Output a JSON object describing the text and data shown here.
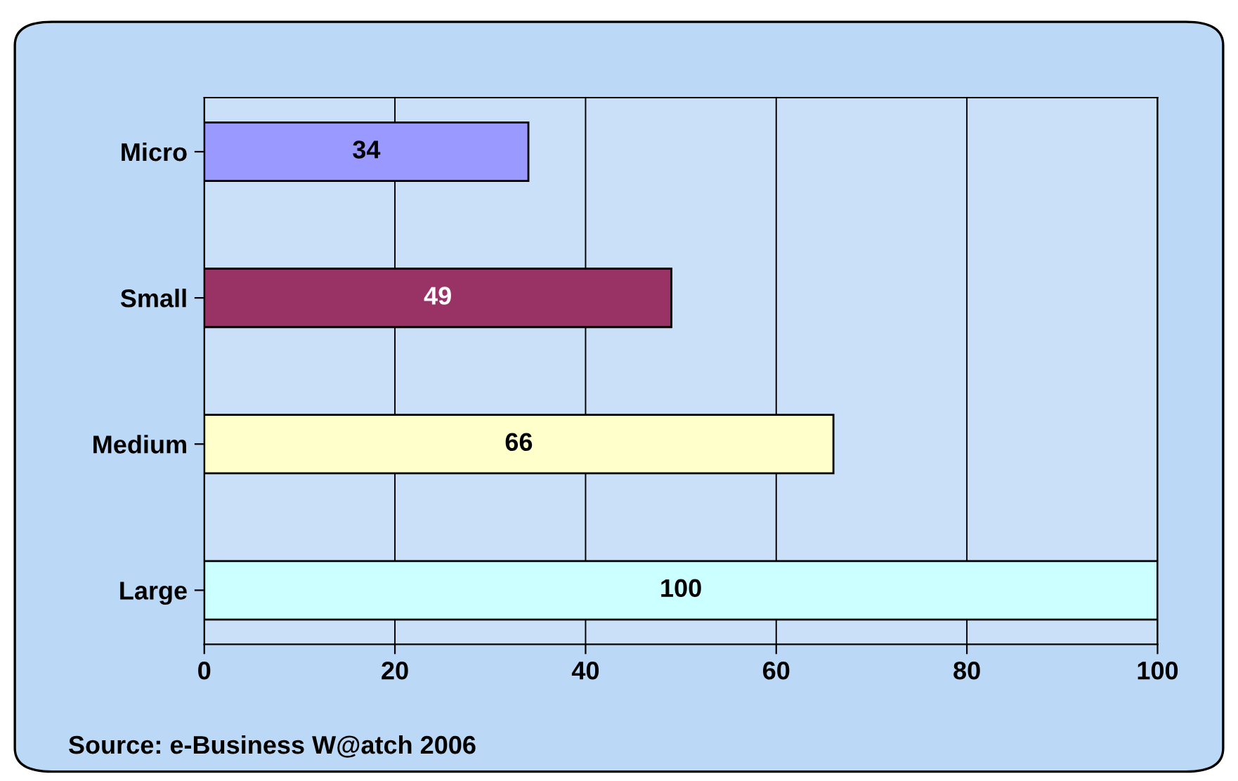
{
  "chart_data": {
    "type": "bar",
    "orientation": "horizontal",
    "categories": [
      "Micro",
      "Small",
      "Medium",
      "Large"
    ],
    "values": [
      34,
      49,
      66,
      100
    ],
    "colors": [
      "#9999ff",
      "#993366",
      "#ffffcc",
      "#ccffff"
    ],
    "xlim": [
      0,
      100
    ],
    "xticks": [
      0,
      20,
      40,
      60,
      80,
      100
    ],
    "grid": "x",
    "data_labels": true,
    "legend": false,
    "annotations": [
      "Source: e-Business W@atch 2006"
    ]
  }
}
